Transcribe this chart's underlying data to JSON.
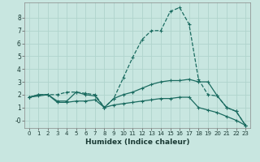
{
  "xlabel": "Humidex (Indice chaleur)",
  "x_ticks": [
    0,
    1,
    2,
    3,
    4,
    5,
    6,
    7,
    8,
    9,
    10,
    11,
    12,
    13,
    14,
    15,
    16,
    17,
    18,
    19,
    20,
    21,
    22,
    23
  ],
  "xlim": [
    -0.5,
    23.5
  ],
  "ylim": [
    -0.6,
    9.2
  ],
  "y_ticks": [
    0,
    1,
    2,
    3,
    4,
    5,
    6,
    7,
    8
  ],
  "background_color": "#c8e6e0",
  "grid_color": "#afd4cc",
  "line_color": "#1a6b60",
  "line1_y": [
    1.8,
    2.0,
    2.0,
    2.0,
    2.2,
    2.2,
    2.1,
    2.0,
    1.0,
    1.7,
    3.3,
    4.9,
    6.3,
    7.0,
    7.0,
    8.5,
    8.8,
    7.5,
    3.2,
    2.0,
    1.9,
    1.0,
    0.7,
    -0.4
  ],
  "line2_y": [
    1.8,
    2.0,
    2.0,
    1.5,
    1.5,
    2.2,
    2.0,
    1.9,
    1.0,
    1.7,
    2.0,
    2.2,
    2.5,
    2.8,
    3.0,
    3.1,
    3.1,
    3.2,
    3.0,
    3.0,
    1.9,
    1.0,
    0.7,
    -0.4
  ],
  "line3_y": [
    1.8,
    1.9,
    2.0,
    1.4,
    1.4,
    1.5,
    1.5,
    1.6,
    1.0,
    1.2,
    1.3,
    1.4,
    1.5,
    1.6,
    1.7,
    1.7,
    1.8,
    1.8,
    1.0,
    0.8,
    0.6,
    0.3,
    0.0,
    -0.4
  ]
}
